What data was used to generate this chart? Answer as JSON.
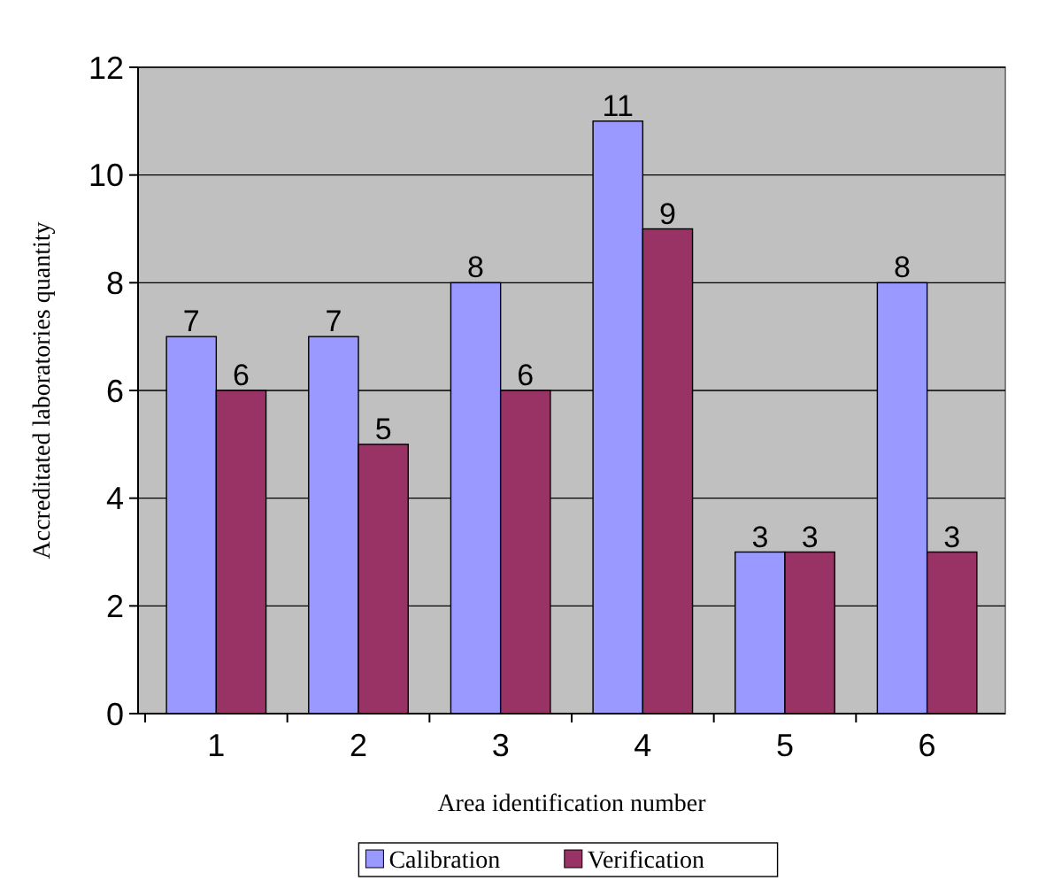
{
  "chart_data": {
    "type": "bar",
    "xlabel": "Area identification number",
    "ylabel": "Accreditated laboratories quantity",
    "categories": [
      "1",
      "2",
      "3",
      "4",
      "5",
      "6"
    ],
    "series": [
      {
        "name": "Calibration",
        "color": "#9999ff",
        "values": [
          7,
          7,
          8,
          11,
          3,
          8
        ]
      },
      {
        "name": "Verification",
        "color": "#993366",
        "values": [
          6,
          5,
          6,
          9,
          3,
          3
        ]
      }
    ],
    "ylim": [
      0,
      12
    ],
    "yticks": [
      0,
      2,
      4,
      6,
      8,
      10,
      12
    ],
    "grid": "y",
    "legend": "bottom",
    "data_labels": true
  }
}
